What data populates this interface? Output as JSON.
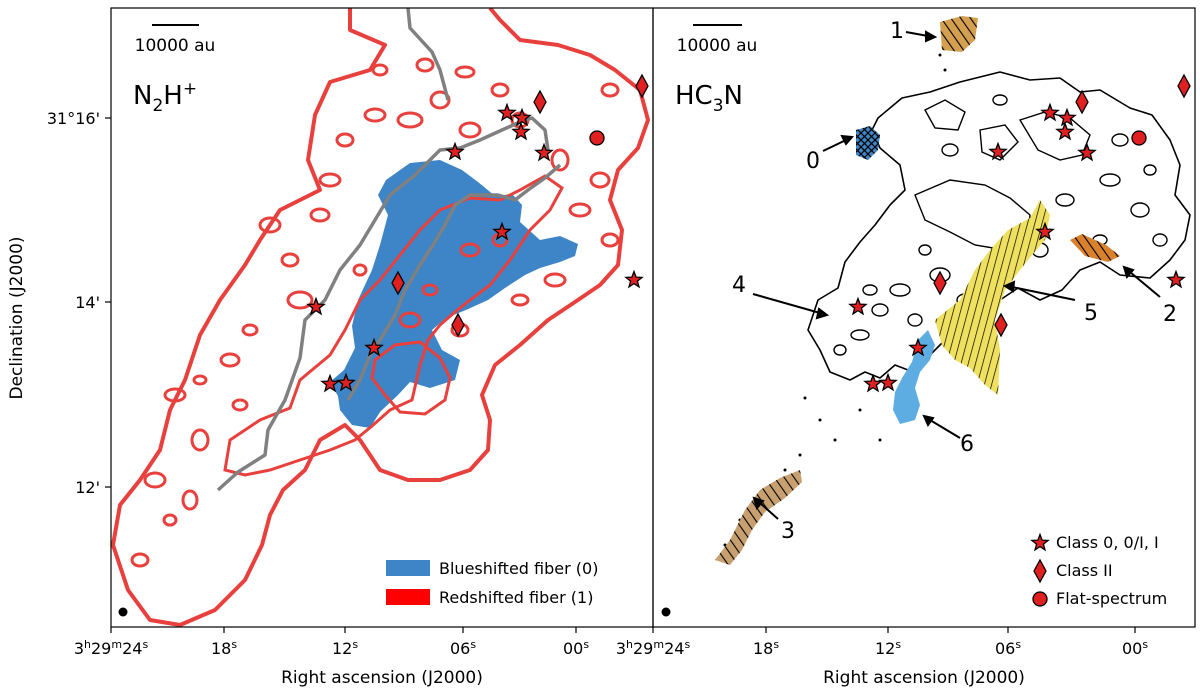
{
  "figure": {
    "ylabel": "Declination (J2000)",
    "xlabel": "Right ascension (J2000)"
  },
  "chart_data": [
    {
      "type": "map",
      "panel": "left",
      "tracer": "N2H+",
      "scalebar_label": "10000 au",
      "x_ticks": [
        "3h29m24s",
        "18s",
        "12s",
        "06s",
        "00s"
      ],
      "y_ticks": [
        "31°16'",
        "14'",
        "12'"
      ],
      "legend": [
        {
          "label": "Blueshifted fiber (0)",
          "color": "#3d85c6"
        },
        {
          "label": "Redshifted fiber (1)",
          "color": "#ff0000"
        }
      ],
      "colors": {
        "red_contour": "#e8403d",
        "blue_fiber": "#3d85c6",
        "spine": "#808080"
      }
    },
    {
      "type": "map",
      "panel": "right",
      "tracer": "HC3N",
      "scalebar_label": "10000 au",
      "x_ticks": [
        "3h29m24s",
        "18s",
        "12s",
        "06s",
        "00s"
      ],
      "fiber_labels": [
        "0",
        "1",
        "2",
        "3",
        "4",
        "5",
        "6"
      ],
      "legend": [
        {
          "label": "Class 0, 0/I, I",
          "marker": "star"
        },
        {
          "label": "Class II",
          "marker": "diamond"
        },
        {
          "label": "Flat-spectrum",
          "marker": "circle"
        }
      ],
      "colors": {
        "fiber0": "#3d85c6",
        "fiber1": "#d4a050",
        "fiber2": "#d9822b",
        "fiber3": "#c8a070",
        "fiber5": "#f0e060",
        "fiber6": "#5dade2",
        "marker": "#e02020"
      }
    }
  ]
}
